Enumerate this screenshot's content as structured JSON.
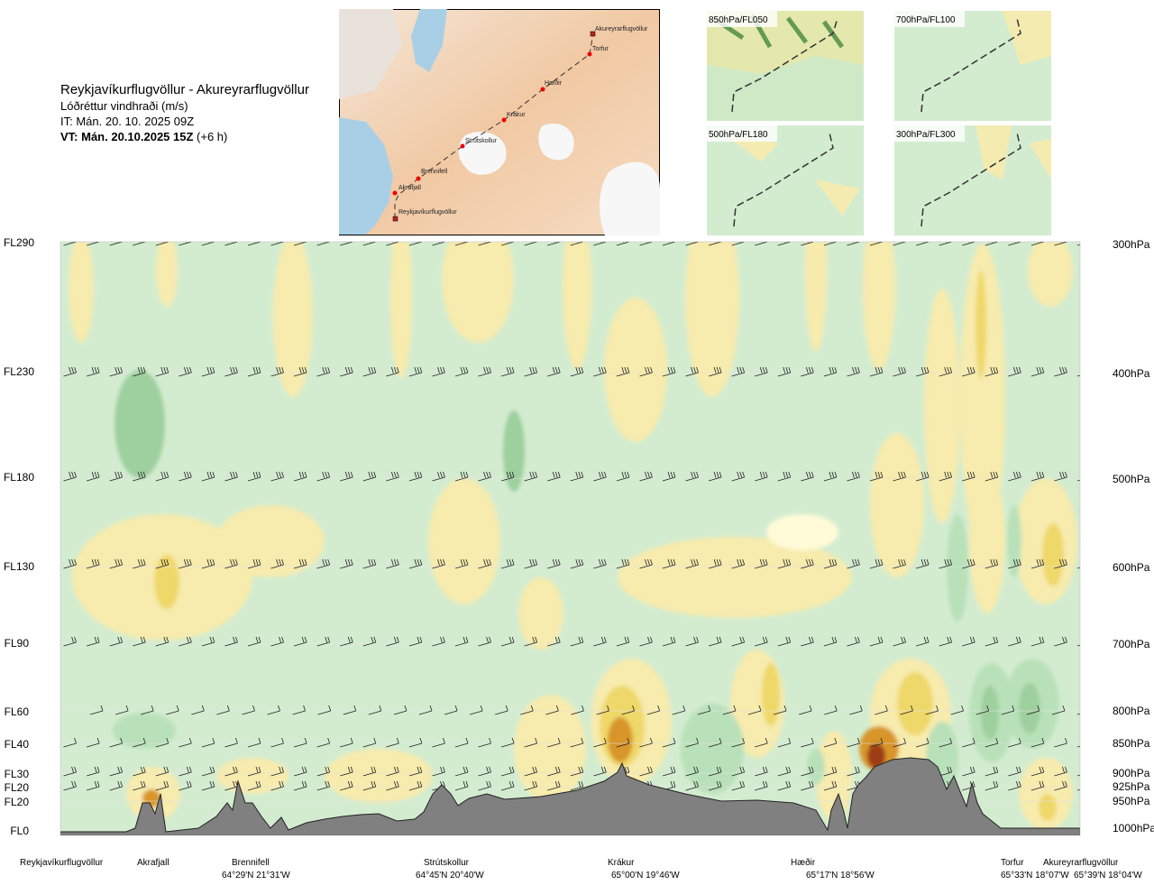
{
  "header": {
    "route": "Reykjavíkurflugvöllur - Akureyrarflugvöllur",
    "variable": "Lóðréttur vindhraði (m/s)",
    "issue_time": "IT: Mán. 20. 10. 2025 09Z",
    "valid_time_bold": "VT: Mán. 20.10.2025 15Z",
    "valid_time_offset": " (+6 h)"
  },
  "map": {
    "waypoints": [
      "Akureyrarflugvöllur",
      "Torfur",
      "Hæðir",
      "Krákur",
      "Strútskollur",
      "Brennifell",
      "Akrafjall",
      "Reykjavíkurflugvöllur"
    ]
  },
  "panels": [
    "850hPa/FL050",
    "700hPa/FL100",
    "500hPa/FL180",
    "300hPa/FL300"
  ],
  "chart_data": {
    "type": "heatmap",
    "title": "Reykjavíkurflugvöllur - Akureyrarflugvöllur",
    "subtitle": "Lóðréttur vindhraði (m/s)",
    "flight_levels": [
      "FL290",
      "FL230",
      "FL180",
      "FL130",
      "FL90",
      "FL60",
      "FL40",
      "FL30",
      "FL20",
      "FL20",
      "FL0"
    ],
    "pressure_levels": [
      "300hPa",
      "400hPa",
      "500hPa",
      "600hPa",
      "700hPa",
      "800hPa",
      "850hPa",
      "900hPa",
      "925hPa",
      "950hPa",
      "1000hPa"
    ],
    "waypoints": [
      {
        "name": "Reykjavíkurflugvöllur",
        "coord": ""
      },
      {
        "name": "Akrafjall",
        "coord": ""
      },
      {
        "name": "Brennifell",
        "coord": "64°29'N 21°31'W"
      },
      {
        "name": "Strútskollur",
        "coord": "64°45'N 20°40'W"
      },
      {
        "name": "Krákur",
        "coord": "65°00'N 19°46'W"
      },
      {
        "name": "Hæðir",
        "coord": "65°17'N 18°56'W"
      },
      {
        "name": "Torfur",
        "coord": "65°33'N 18°07'W"
      },
      {
        "name": "Akureyrarflugvöllur",
        "coord": "65°39'N 18°04'W"
      }
    ],
    "colors": {
      "strong_down": "#9ecf9e",
      "down": "#b9e1b9",
      "weak_down": "#d3ecd0",
      "weak_up": "#fffbd8",
      "up": "#f7ebad",
      "mod_up": "#efd86a",
      "strong_up": "#e3c22a",
      "very_strong_up": "#d8952a",
      "extreme_up": "#9c3c12",
      "terrain": "#808080"
    }
  }
}
